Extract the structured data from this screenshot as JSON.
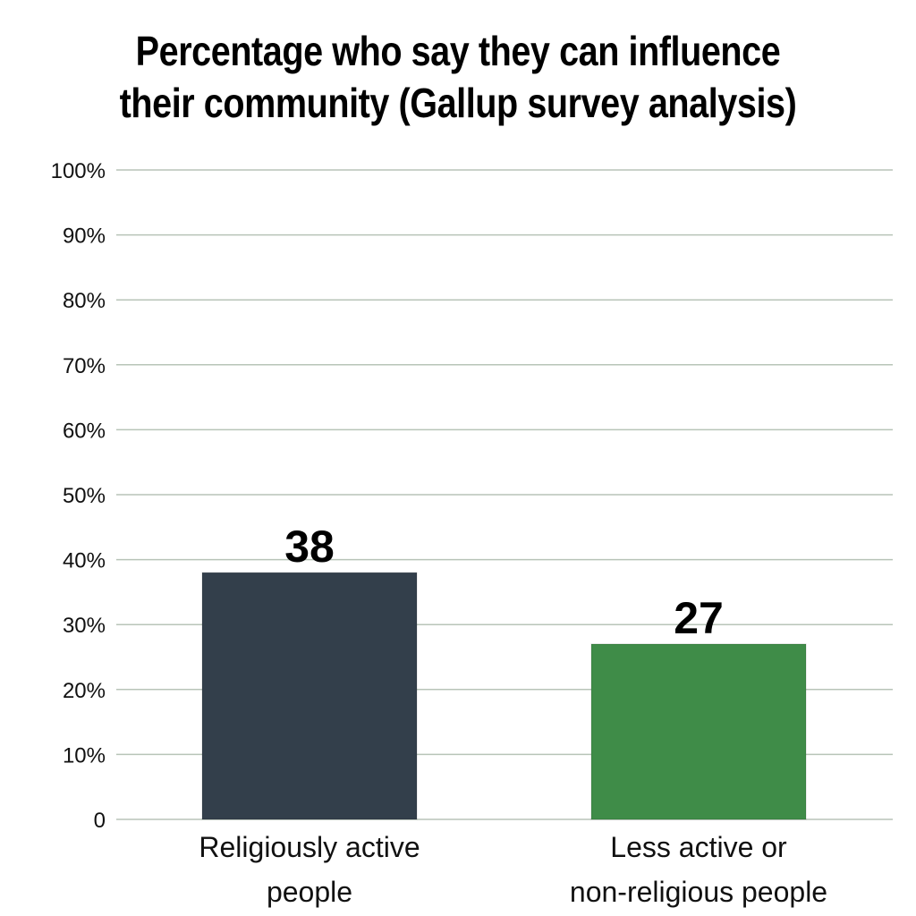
{
  "chart_data": {
    "type": "bar",
    "title": "Percentage who say they can influence their community (Gallup survey analysis)",
    "title_lines": [
      "Percentage who say they can influence",
      "their community (Gallup survey analysis)"
    ],
    "categories": [
      "Religiously active people",
      "Less active or non-religious people"
    ],
    "category_lines": [
      [
        "Religiously active",
        "people"
      ],
      [
        "Less active or",
        "non-religious people"
      ]
    ],
    "values": [
      38,
      27
    ],
    "data_labels": [
      "38",
      "27"
    ],
    "colors": [
      "#333f4b",
      "#3f8c48"
    ],
    "ylim": [
      0,
      100
    ],
    "yticks": [
      0,
      10,
      20,
      30,
      40,
      50,
      60,
      70,
      80,
      90,
      100
    ],
    "ytick_labels": [
      "0",
      "10%",
      "20%",
      "30%",
      "40%",
      "50%",
      "60%",
      "70%",
      "80%",
      "90%",
      "100%"
    ],
    "grid": true,
    "grid_color": "#b8c4b8",
    "xlabel": "",
    "ylabel": ""
  }
}
